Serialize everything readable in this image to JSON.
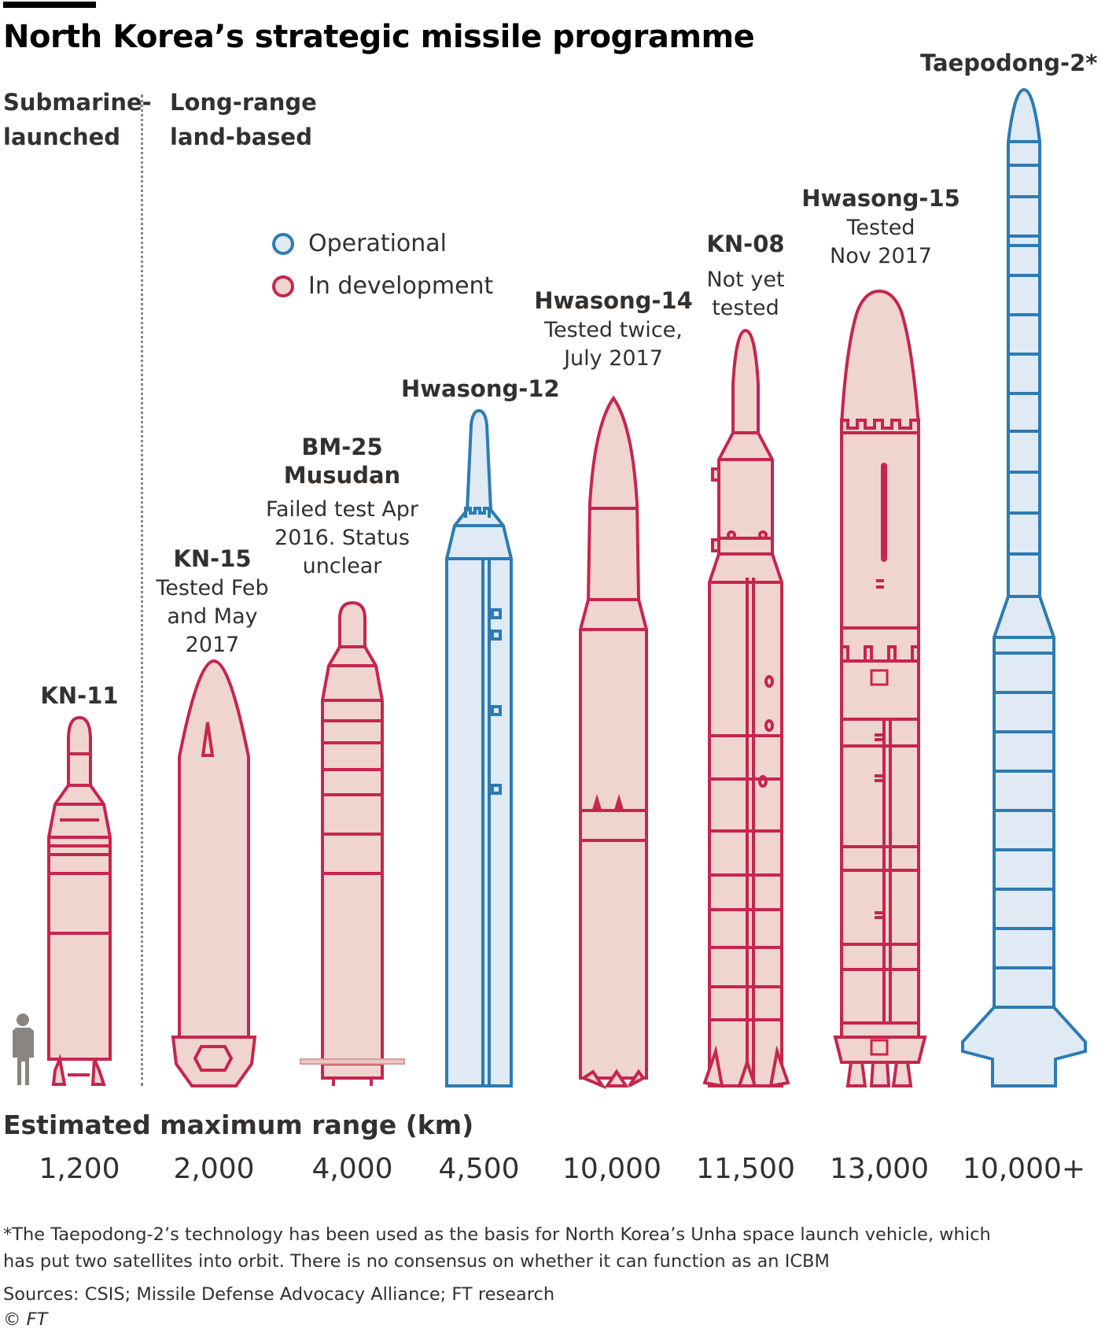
{
  "title": "North Korea’s strategic missile programme",
  "categories": {
    "submarine": "Submarine-\nlaunched",
    "land": "Long-range\nland-based"
  },
  "legend": {
    "operational": "Operational",
    "development": "In development"
  },
  "colors": {
    "operational_stroke": "#2d7bb3",
    "operational_fill": "#dfeaf5",
    "development_stroke": "#c5264e",
    "development_fill": "#f0d4d0",
    "person": "#8a8581"
  },
  "missiles": [
    {
      "name": "KN-11",
      "note": "",
      "range": "1,200",
      "status": "development"
    },
    {
      "name": "KN-15",
      "note": "Tested Feb\nand May\n2017",
      "range": "2,000",
      "status": "development"
    },
    {
      "name": "BM-25\nMusudan",
      "note": "Failed test Apr\n2016. Status\nunclear",
      "range": "4,000",
      "status": "development"
    },
    {
      "name": "Hwasong-12",
      "note": "",
      "range": "4,500",
      "status": "operational"
    },
    {
      "name": "Hwasong-14",
      "note": "Tested twice,\nJuly 2017",
      "range": "10,000",
      "status": "development"
    },
    {
      "name": "KN-08",
      "note": "Not yet\ntested",
      "range": "11,500",
      "status": "development"
    },
    {
      "name": "Hwasong-15",
      "note": "Tested\nNov 2017",
      "range": "13,000",
      "status": "development"
    },
    {
      "name": "Taepodong-2*",
      "note": "",
      "range": "10,000+",
      "status": "operational"
    }
  ],
  "range_title": "Estimated maximum range (km)",
  "footnote_line1": "*The Taepodong-2’s technology has been used as the basis for North Korea’s Unha space launch vehicle, which",
  "footnote_line2": "has put two satellites into orbit. There is no consensus on whether it can function as an ICBM",
  "sources": "Sources: CSIS; Missile Defense Advocacy Alliance; FT research",
  "copyright": "© FT"
}
